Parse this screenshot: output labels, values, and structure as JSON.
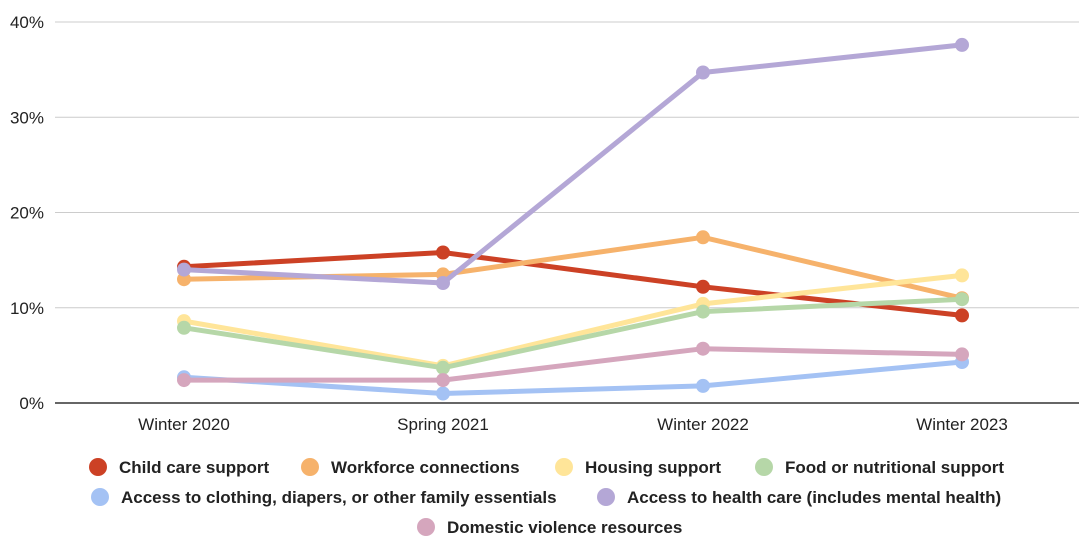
{
  "chart_data": {
    "type": "line",
    "title": "",
    "xlabel": "",
    "ylabel": "",
    "categories": [
      "Winter 2020",
      "Spring 2021",
      "Winter 2022",
      "Winter 2023"
    ],
    "ylim": [
      0,
      40
    ],
    "yticks": [
      {
        "value": 0,
        "label": "0%"
      },
      {
        "value": 10,
        "label": "10%"
      },
      {
        "value": 20,
        "label": "20%"
      },
      {
        "value": 30,
        "label": "30%"
      },
      {
        "value": 40,
        "label": "40%"
      }
    ],
    "grid": true,
    "legend_position": "bottom",
    "series": [
      {
        "name": "Child care support",
        "color": "#cc4125",
        "values": [
          14.3,
          15.8,
          12.2,
          9.2
        ]
      },
      {
        "name": "Workforce connections",
        "color": "#f6b26b",
        "values": [
          13.0,
          13.5,
          17.4,
          11.0
        ]
      },
      {
        "name": "Housing support",
        "color": "#ffe599",
        "values": [
          8.6,
          3.9,
          10.4,
          13.4
        ]
      },
      {
        "name": "Food or nutritional support",
        "color": "#b6d7a8",
        "values": [
          7.9,
          3.7,
          9.6,
          10.9
        ]
      },
      {
        "name": "Access to clothing, diapers, or other family essentials",
        "color": "#a4c2f4",
        "values": [
          2.7,
          1.0,
          1.8,
          4.3
        ]
      },
      {
        "name": "Access to health care (includes mental health)",
        "color": "#b4a7d6",
        "values": [
          14.0,
          12.6,
          34.7,
          37.6
        ]
      },
      {
        "name": "Domestic violence resources",
        "color": "#d5a6bd",
        "values": [
          2.4,
          2.4,
          5.7,
          5.1
        ]
      }
    ]
  }
}
